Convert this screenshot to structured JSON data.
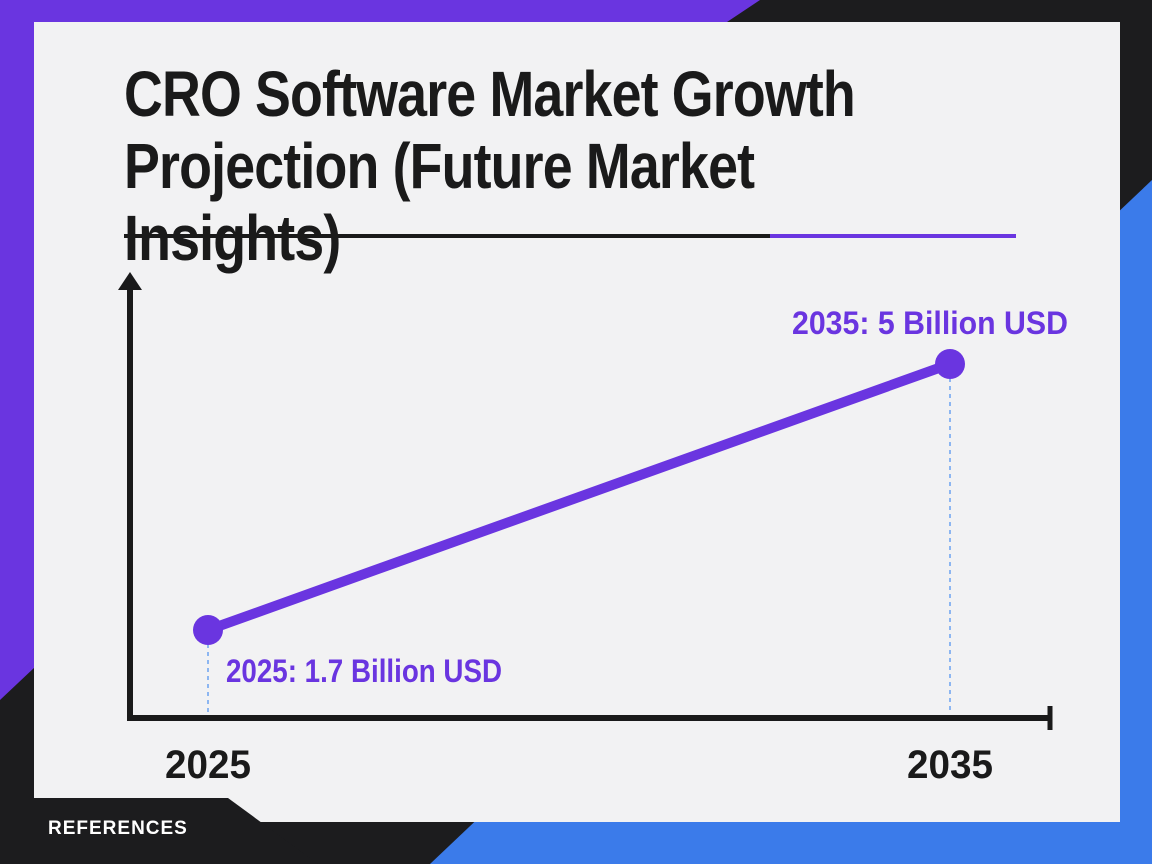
{
  "theme": {
    "accent": "#6a35e0",
    "accent_secondary": "#3b7bea",
    "dark": "#1c1c1e",
    "panel": "#f2f2f3",
    "ink": "#1a1a1a",
    "guide": "#4a8ff0"
  },
  "footer": {
    "references_label": "REFERENCES"
  },
  "chart_data": {
    "type": "line",
    "title": "CRO Software Market Growth Projection (Future Market Insights)",
    "xlabel": "",
    "ylabel": "",
    "categories": [
      "2025",
      "2035"
    ],
    "series": [
      {
        "values": [
          1.7,
          5
        ]
      }
    ],
    "data_labels": [
      "2025: 1.7 Billion USD",
      "2035: 5 Billion USD"
    ],
    "ylim": [
      0,
      6
    ],
    "grid": false,
    "legend": "none"
  }
}
